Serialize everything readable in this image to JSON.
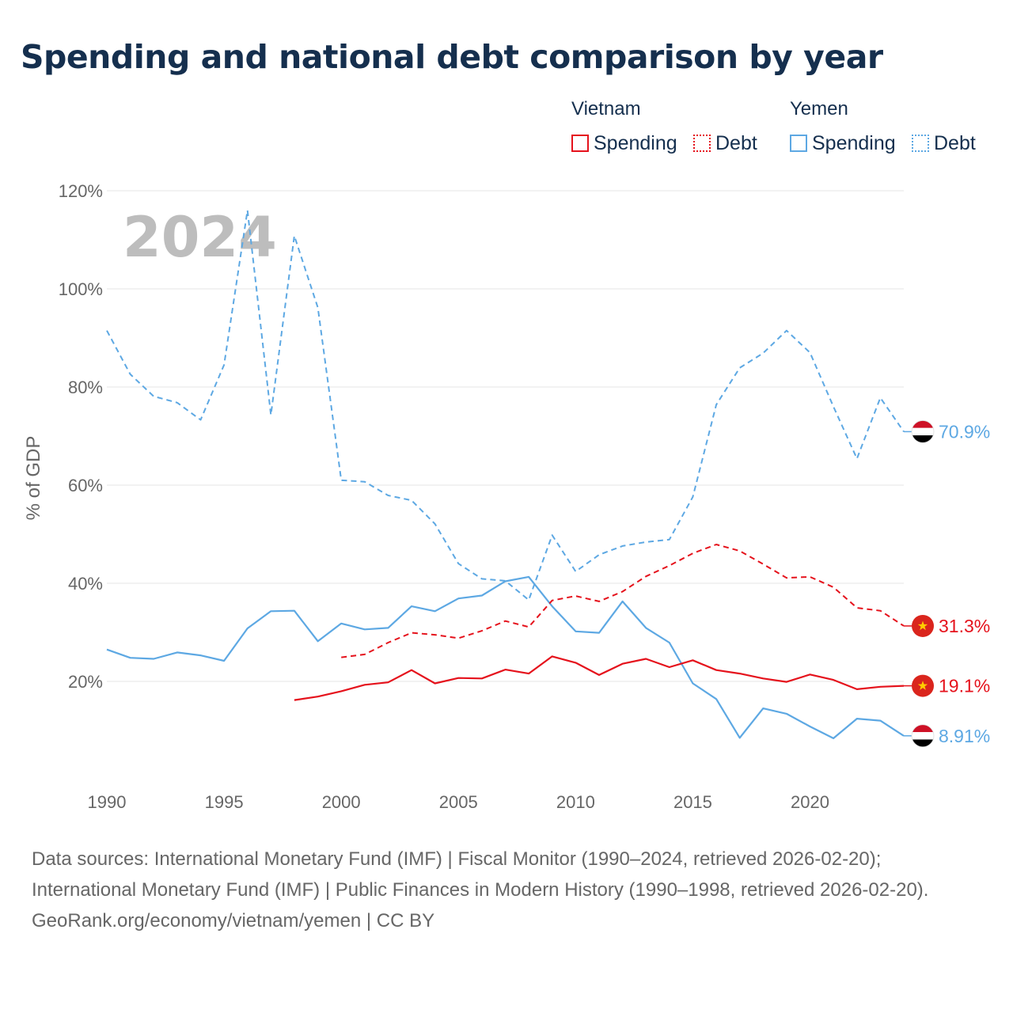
{
  "title": "Spending and national debt comparison by year",
  "legend": {
    "groups": [
      {
        "country": "Vietnam",
        "spending_label": "Spending",
        "debt_label": "Debt"
      },
      {
        "country": "Yemen",
        "spending_label": "Spending",
        "debt_label": "Debt"
      }
    ]
  },
  "colors": {
    "vietnam": "#e5121c",
    "yemen": "#5da8e3",
    "title": "#152f4e",
    "axis_text": "#666666",
    "year_watermark": "#bdbdbd"
  },
  "footer": {
    "sources": "Data sources: International Monetary Fund (IMF) | Fiscal Monitor (1990–2024, retrieved 2026-02-20); International Monetary Fund (IMF) | Public Finances in Modern History (1990–1998, retrieved 2026-02-20).",
    "credit": "GeoRank.org/economy/vietnam/yemen | CC BY"
  },
  "chart_data": {
    "type": "line",
    "title": "Spending and national debt comparison by year",
    "year_label": "2024",
    "xlabel": "",
    "ylabel": "% of GDP",
    "xlim": [
      1990,
      2024
    ],
    "ylim": [
      0,
      120
    ],
    "x_ticks": [
      1990,
      1995,
      2000,
      2005,
      2010,
      2015,
      2020
    ],
    "y_ticks": [
      20,
      40,
      60,
      80,
      100,
      120
    ],
    "y_tick_labels": [
      "20%",
      "40%",
      "60%",
      "80%",
      "100%",
      "120%"
    ],
    "grid": true,
    "series": [
      {
        "name": "Yemen Debt",
        "country": "Yemen",
        "metric": "Debt",
        "style": "dashed",
        "color": "#5da8e3",
        "end_label": "70.9%",
        "points": [
          [
            1990,
            91.5
          ],
          [
            1991,
            82.6
          ],
          [
            1992,
            78.1
          ],
          [
            1993,
            76.8
          ],
          [
            1994,
            73.3
          ],
          [
            1995,
            84.5
          ],
          [
            1996,
            116
          ],
          [
            1997,
            74.3
          ],
          [
            1998,
            110.8
          ],
          [
            1999,
            96.2
          ],
          [
            2000,
            61
          ],
          [
            2001,
            60.7
          ],
          [
            2002,
            57.9
          ],
          [
            2003,
            56.9
          ],
          [
            2004,
            52.1
          ],
          [
            2005,
            44
          ],
          [
            2006,
            40.9
          ],
          [
            2007,
            40.5
          ],
          [
            2008,
            36.6
          ],
          [
            2009,
            49.8
          ],
          [
            2010,
            42.4
          ],
          [
            2011,
            45.8
          ],
          [
            2012,
            47.6
          ],
          [
            2013,
            48.4
          ],
          [
            2014,
            48.9
          ],
          [
            2015,
            57.6
          ],
          [
            2016,
            76.4
          ],
          [
            2017,
            83.9
          ],
          [
            2018,
            86.9
          ],
          [
            2019,
            91.5
          ],
          [
            2020,
            87
          ],
          [
            2021,
            76
          ],
          [
            2022,
            65.4
          ],
          [
            2023,
            77.8
          ],
          [
            2024,
            70.9
          ]
        ]
      },
      {
        "name": "Yemen Spending",
        "country": "Yemen",
        "metric": "Spending",
        "style": "solid",
        "color": "#5da8e3",
        "end_label": "8.91%",
        "points": [
          [
            1990,
            26.5
          ],
          [
            1991,
            24.8
          ],
          [
            1992,
            24.6
          ],
          [
            1993,
            25.9
          ],
          [
            1994,
            25.3
          ],
          [
            1995,
            24.2
          ],
          [
            1996,
            30.8
          ],
          [
            1997,
            34.3
          ],
          [
            1998,
            34.4
          ],
          [
            1999,
            28.2
          ],
          [
            2000,
            31.8
          ],
          [
            2001,
            30.6
          ],
          [
            2002,
            30.9
          ],
          [
            2003,
            35.3
          ],
          [
            2004,
            34.3
          ],
          [
            2005,
            36.9
          ],
          [
            2006,
            37.5
          ],
          [
            2007,
            40.4
          ],
          [
            2008,
            41.3
          ],
          [
            2009,
            35.3
          ],
          [
            2010,
            30.2
          ],
          [
            2011,
            29.9
          ],
          [
            2012,
            36.3
          ],
          [
            2013,
            30.9
          ],
          [
            2014,
            27.9
          ],
          [
            2015,
            19.6
          ],
          [
            2016,
            16.4
          ],
          [
            2017,
            8.5
          ],
          [
            2018,
            14.5
          ],
          [
            2019,
            13.4
          ],
          [
            2020,
            10.8
          ],
          [
            2021,
            8.4
          ],
          [
            2022,
            12.4
          ],
          [
            2023,
            12
          ],
          [
            2024,
            8.91
          ]
        ]
      },
      {
        "name": "Vietnam Debt",
        "country": "Vietnam",
        "metric": "Debt",
        "style": "dashed",
        "color": "#e5121c",
        "end_label": "31.3%",
        "points": [
          [
            2000,
            24.9
          ],
          [
            2001,
            25.5
          ],
          [
            2002,
            27.9
          ],
          [
            2003,
            29.9
          ],
          [
            2004,
            29.5
          ],
          [
            2005,
            28.8
          ],
          [
            2006,
            30.3
          ],
          [
            2007,
            32.3
          ],
          [
            2008,
            31.1
          ],
          [
            2009,
            36.5
          ],
          [
            2010,
            37.4
          ],
          [
            2011,
            36.3
          ],
          [
            2012,
            38.3
          ],
          [
            2013,
            41.4
          ],
          [
            2014,
            43.6
          ],
          [
            2015,
            46.1
          ],
          [
            2016,
            47.9
          ],
          [
            2017,
            46.6
          ],
          [
            2018,
            43.9
          ],
          [
            2019,
            41.1
          ],
          [
            2020,
            41.3
          ],
          [
            2021,
            39.2
          ],
          [
            2022,
            35
          ],
          [
            2023,
            34.4
          ],
          [
            2024,
            31.3
          ]
        ]
      },
      {
        "name": "Vietnam Spending",
        "country": "Vietnam",
        "metric": "Spending",
        "style": "solid",
        "color": "#e5121c",
        "end_label": "19.1%",
        "points": [
          [
            1998,
            16.2
          ],
          [
            1999,
            16.9
          ],
          [
            2000,
            18
          ],
          [
            2001,
            19.3
          ],
          [
            2002,
            19.8
          ],
          [
            2003,
            22.3
          ],
          [
            2004,
            19.6
          ],
          [
            2005,
            20.7
          ],
          [
            2006,
            20.6
          ],
          [
            2007,
            22.4
          ],
          [
            2008,
            21.6
          ],
          [
            2009,
            25.1
          ],
          [
            2010,
            23.8
          ],
          [
            2011,
            21.3
          ],
          [
            2012,
            23.6
          ],
          [
            2013,
            24.6
          ],
          [
            2014,
            22.9
          ],
          [
            2015,
            24.3
          ],
          [
            2016,
            22.3
          ],
          [
            2017,
            21.6
          ],
          [
            2018,
            20.6
          ],
          [
            2019,
            19.9
          ],
          [
            2020,
            21.4
          ],
          [
            2021,
            20.3
          ],
          [
            2022,
            18.4
          ],
          [
            2023,
            18.9
          ],
          [
            2024,
            19.1
          ]
        ]
      }
    ]
  }
}
